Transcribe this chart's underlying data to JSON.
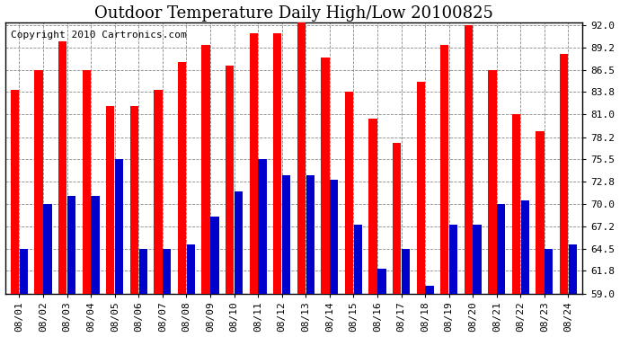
{
  "title": "Outdoor Temperature Daily High/Low 20100825",
  "copyright": "Copyright 2010 Cartronics.com",
  "dates": [
    "08/01",
    "08/02",
    "08/03",
    "08/04",
    "08/05",
    "08/06",
    "08/07",
    "08/08",
    "08/09",
    "08/10",
    "08/11",
    "08/12",
    "08/13",
    "08/14",
    "08/15",
    "08/16",
    "08/17",
    "08/18",
    "08/19",
    "08/20",
    "08/21",
    "08/22",
    "08/23",
    "08/24"
  ],
  "highs": [
    84.0,
    86.5,
    90.0,
    86.5,
    82.0,
    82.0,
    84.0,
    87.5,
    89.5,
    87.0,
    91.0,
    91.0,
    92.5,
    88.0,
    83.8,
    80.5,
    77.5,
    85.0,
    89.5,
    92.0,
    86.5,
    81.0,
    79.0,
    88.5
  ],
  "lows": [
    64.5,
    70.0,
    71.0,
    71.0,
    75.5,
    64.5,
    64.5,
    65.0,
    68.5,
    71.5,
    75.5,
    73.5,
    73.5,
    73.0,
    67.5,
    62.0,
    64.5,
    60.0,
    67.5,
    67.5,
    70.0,
    70.5,
    64.5,
    65.0
  ],
  "high_color": "#ff0000",
  "low_color": "#0000cc",
  "ylim_min": 59.0,
  "ylim_max": 92.0,
  "yticks": [
    59.0,
    61.8,
    64.5,
    67.2,
    70.0,
    72.8,
    75.5,
    78.2,
    81.0,
    83.8,
    86.5,
    89.2,
    92.0
  ],
  "background_color": "#ffffff",
  "plot_bg_color": "#ffffff",
  "grid_color": "#888888",
  "title_fontsize": 13,
  "copyright_fontsize": 8,
  "tick_fontsize": 8,
  "bar_width": 0.35,
  "bar_gap": 0.02
}
